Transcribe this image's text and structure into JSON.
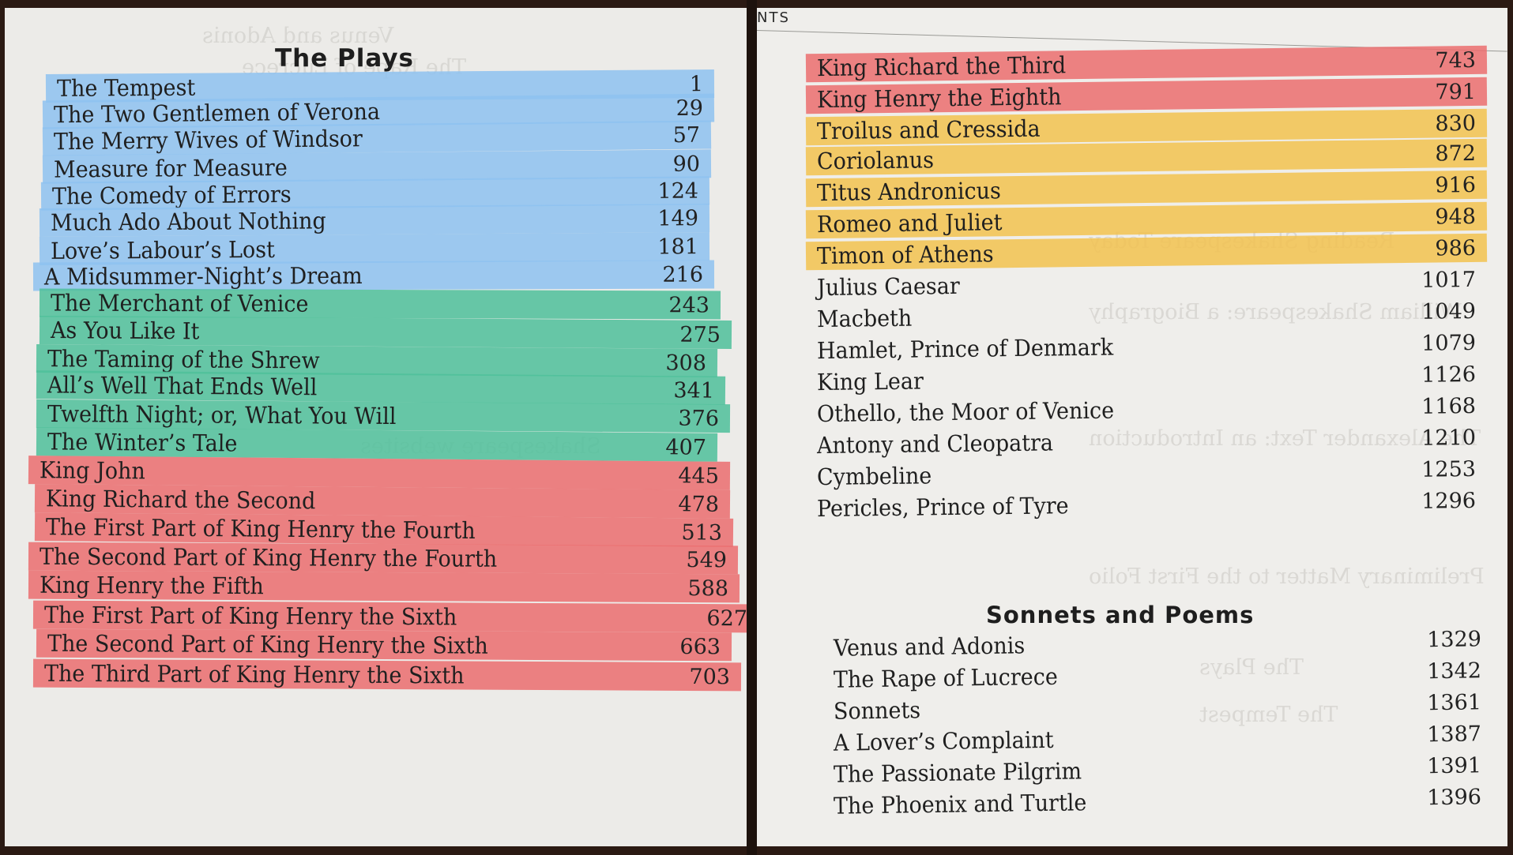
{
  "left_page": {
    "heading": "The Plays",
    "plays": [
      {
        "title": "The Tempest",
        "page": "1",
        "highlight": "blue"
      },
      {
        "title": "The Two Gentlemen of Verona",
        "page": "29",
        "highlight": "blue"
      },
      {
        "title": "The Merry Wives of Windsor",
        "page": "57",
        "highlight": "blue"
      },
      {
        "title": "Measure for Measure",
        "page": "90",
        "highlight": "blue"
      },
      {
        "title": "The Comedy of Errors",
        "page": "124",
        "highlight": "blue"
      },
      {
        "title": "Much Ado About Nothing",
        "page": "149",
        "highlight": "blue"
      },
      {
        "title": "Love’s Labour’s Lost",
        "page": "181",
        "highlight": "blue"
      },
      {
        "title": "A Midsummer-Night’s Dream",
        "page": "216",
        "highlight": "blue"
      },
      {
        "title": "The Merchant of Venice",
        "page": "243",
        "highlight": "green"
      },
      {
        "title": "As You Like It",
        "page": "275",
        "highlight": "green"
      },
      {
        "title": "The Taming of the Shrew",
        "page": "308",
        "highlight": "green"
      },
      {
        "title": "All’s Well That Ends Well",
        "page": "341",
        "highlight": "green"
      },
      {
        "title": "Twelfth Night; or, What You Will",
        "page": "376",
        "highlight": "green"
      },
      {
        "title": "The Winter’s Tale",
        "page": "407",
        "highlight": "green"
      },
      {
        "title": "King John",
        "page": "445",
        "highlight": "red"
      },
      {
        "title": "King Richard the Second",
        "page": "478",
        "highlight": "red"
      },
      {
        "title": "The First Part of King Henry the Fourth",
        "page": "513",
        "highlight": "red"
      },
      {
        "title": "The Second Part of King Henry the Fourth",
        "page": "549",
        "highlight": "red"
      },
      {
        "title": "King Henry the Fifth",
        "page": "588",
        "highlight": "red"
      },
      {
        "title": "The First Part of King Henry the Sixth",
        "page": "627",
        "highlight": "red"
      },
      {
        "title": "The Second Part of King Henry the Sixth",
        "page": "663",
        "highlight": "red"
      },
      {
        "title": "The Third Part of King Henry the Sixth",
        "page": "703",
        "highlight": "red"
      }
    ]
  },
  "right_page": {
    "running_head": "NTS",
    "plays": [
      {
        "title": "King Richard the Third",
        "page": "743",
        "highlight": "red"
      },
      {
        "title": "King Henry the Eighth",
        "page": "791",
        "highlight": "red"
      },
      {
        "title": "Troilus and Cressida",
        "page": "830",
        "highlight": "yellow"
      },
      {
        "title": "Coriolanus",
        "page": "872",
        "highlight": "yellow"
      },
      {
        "title": "Titus Andronicus",
        "page": "916",
        "highlight": "yellow"
      },
      {
        "title": "Romeo and Juliet",
        "page": "948",
        "highlight": "yellow"
      },
      {
        "title": "Timon of Athens",
        "page": "986",
        "highlight": "yellow"
      },
      {
        "title": "Julius Caesar",
        "page": "1017",
        "highlight": "none"
      },
      {
        "title": "Macbeth",
        "page": "1049",
        "highlight": "none"
      },
      {
        "title": "Hamlet, Prince of Denmark",
        "page": "1079",
        "highlight": "none"
      },
      {
        "title": "King Lear",
        "page": "1126",
        "highlight": "none"
      },
      {
        "title": "Othello, the Moor of Venice",
        "page": "1168",
        "highlight": "none"
      },
      {
        "title": "Antony and Cleopatra",
        "page": "1210",
        "highlight": "none"
      },
      {
        "title": "Cymbeline",
        "page": "1253",
        "highlight": "none"
      },
      {
        "title": "Pericles, Prince of Tyre",
        "page": "1296",
        "highlight": "none"
      }
    ],
    "poems_heading": "Sonnets and Poems",
    "poems": [
      {
        "title": "Venus and Adonis",
        "page": "1329"
      },
      {
        "title": "The Rape of Lucrece",
        "page": "1342"
      },
      {
        "title": "Sonnets",
        "page": "1361"
      },
      {
        "title": "A Lover’s Complaint",
        "page": "1387"
      },
      {
        "title": "The Passionate Pilgrim",
        "page": "1391"
      },
      {
        "title": "The Phoenix and Turtle",
        "page": "1396"
      }
    ]
  },
  "colors": {
    "blue": "#8ec2f0",
    "green": "#4fc09a",
    "red": "#eb6d6f",
    "yellow": "#f2c24f",
    "paper": "#ecebe8",
    "background": "#2b1a13"
  }
}
